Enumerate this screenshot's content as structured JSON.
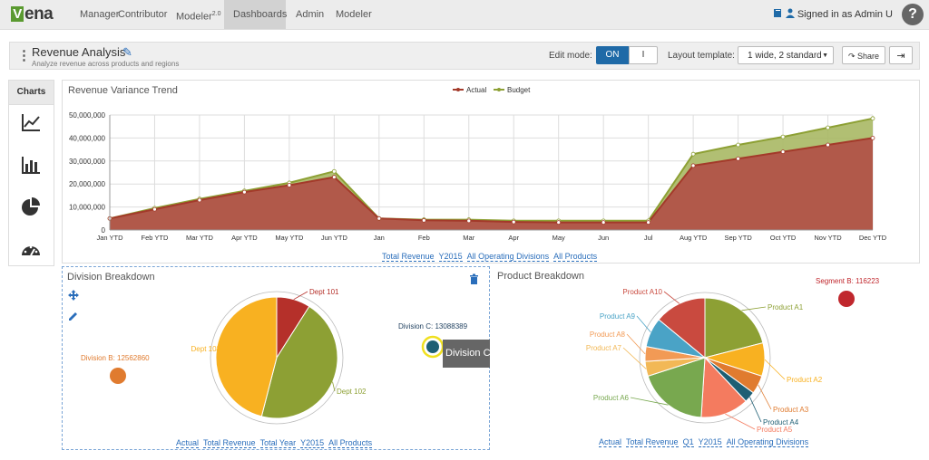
{
  "app": {
    "logo_text": "ena",
    "logo_mark": "V"
  },
  "nav": {
    "items": [
      {
        "label": "Manager"
      },
      {
        "label": "Contributor"
      },
      {
        "label": "Modeler",
        "sup": "2.0"
      },
      {
        "label": "Dashboards",
        "active": true
      },
      {
        "label": "Admin"
      },
      {
        "label": "Modeler"
      }
    ],
    "signed_in": "Signed in as Admin U",
    "help": "?"
  },
  "page": {
    "title": "Revenue Analysis",
    "subtitle": "Analyze revenue across products and regions",
    "edit_mode_label": "Edit mode:",
    "toggle_on": "ON",
    "toggle_off": "I",
    "layout_label": "Layout template:",
    "layout_value": "1 wide, 2 standard",
    "share": "Share"
  },
  "sidebar": {
    "header": "Charts",
    "icons": [
      "line-chart-icon",
      "bar-chart-icon",
      "pie-chart-icon",
      "gauge-icon"
    ]
  },
  "colors": {
    "actual": "#a33a2a",
    "actual_fill": "#b1594a",
    "budget": "#8da034",
    "budget_fill": "#a9b864",
    "accent": "#1f6aa7"
  },
  "trend": {
    "title": "Revenue Variance Trend",
    "crumbs": [
      "Total Revenue",
      "Y2015",
      "All Operating Divisions",
      "All Products"
    ],
    "chart_data": {
      "type": "area",
      "title": "Revenue Variance Trend",
      "categories": [
        "Jan YTD",
        "Feb YTD",
        "Mar YTD",
        "Apr YTD",
        "May YTD",
        "Jun YTD",
        "Jan",
        "Feb",
        "Mar",
        "Apr",
        "May",
        "Jun",
        "Jul",
        "Aug YTD",
        "Sep YTD",
        "Oct YTD",
        "Nov YTD",
        "Dec YTD"
      ],
      "y_ticks": [
        "50,000,000",
        "40,000,000",
        "30,000,000",
        "20,000,000",
        "10,000,000",
        "0"
      ],
      "ylim": [
        0,
        50000000
      ],
      "grid": true,
      "legend_position": "top",
      "series": [
        {
          "name": "Actual",
          "values": [
            5000000,
            9000000,
            13000000,
            16500000,
            19500000,
            23000000,
            5000000,
            4200000,
            4000000,
            3500000,
            3300000,
            3300000,
            3300000,
            28000000,
            31000000,
            34000000,
            37000000,
            40000000
          ]
        },
        {
          "name": "Budget",
          "values": [
            5000000,
            9500000,
            13500000,
            17000000,
            20500000,
            25500000,
            5000000,
            4500000,
            4500000,
            4000000,
            4000000,
            4000000,
            4000000,
            33000000,
            37000000,
            40500000,
            44500000,
            48500000
          ]
        }
      ]
    }
  },
  "division": {
    "title": "Division Breakdown",
    "crumbs": [
      "Actual",
      "Total Revenue",
      "Total Year",
      "Y2015",
      "All Products"
    ],
    "tooltip": "Division C :",
    "chart_data": {
      "type": "pie",
      "slices": [
        {
          "label": "Dept 101",
          "value": 9,
          "color": "#b5302a"
        },
        {
          "label": "Dept 102",
          "value": 45,
          "color": "#8da034"
        },
        {
          "label": "Dept 103",
          "value": 46,
          "color": "#f8b121"
        }
      ],
      "points": [
        {
          "label": "Division B: 12562860",
          "value": 12562860,
          "color": "#e07b2f"
        },
        {
          "label": "Division C: 13088389",
          "value": 13088389,
          "color": "#1e5f74"
        }
      ]
    }
  },
  "product": {
    "title": "Product Breakdown",
    "crumbs": [
      "Actual",
      "Total Revenue",
      "Q1",
      "Y2015",
      "All Operating Divisions"
    ],
    "chart_data": {
      "type": "pie",
      "slices": [
        {
          "label": "Product A1",
          "value": 21,
          "color": "#8da034"
        },
        {
          "label": "Product A2",
          "value": 9,
          "color": "#f8b121"
        },
        {
          "label": "Product A3",
          "value": 5,
          "color": "#e07b2f"
        },
        {
          "label": "Product A4",
          "value": 3,
          "color": "#1e5f74"
        },
        {
          "label": "Product A5",
          "value": 13,
          "color": "#f47b5f"
        },
        {
          "label": "Product A6",
          "value": 19,
          "color": "#78a84f"
        },
        {
          "label": "Product A7",
          "value": 4,
          "color": "#f2b856"
        },
        {
          "label": "Product A8",
          "value": 4,
          "color": "#f29a55"
        },
        {
          "label": "Product A9",
          "value": 8,
          "color": "#4aa3c6"
        },
        {
          "label": "Product A10",
          "value": 14,
          "color": "#c94a3f"
        }
      ],
      "points": [
        {
          "label": "Segment B: 116223",
          "value": 116223,
          "color": "#c0272d"
        }
      ]
    }
  }
}
